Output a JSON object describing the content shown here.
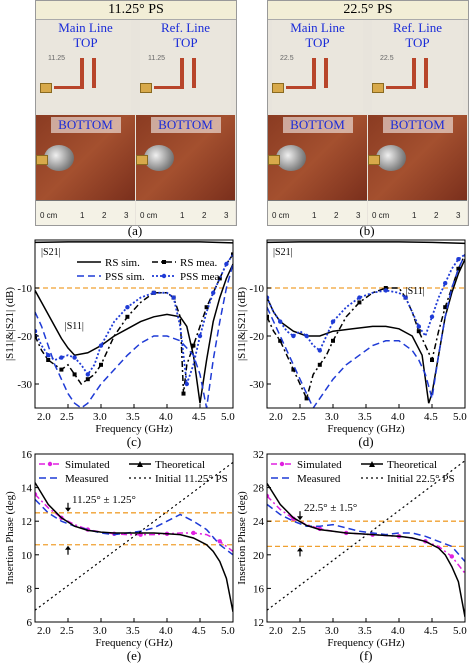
{
  "photos": {
    "left": {
      "title": "11.25° PS",
      "main": "Main Line",
      "ref": "Ref. Line",
      "top": "TOP",
      "bottom": "BOTTOM",
      "caption": "(a)",
      "ruler": [
        "0 cm",
        "1",
        "2",
        "3"
      ],
      "stamp1": "11.25",
      "stamp2": "11.25"
    },
    "right": {
      "title": "22.5° PS",
      "main": "Main Line",
      "ref": "Ref. Line",
      "top": "TOP",
      "bottom": "BOTTOM",
      "caption": "(b)",
      "ruler": [
        "0 cm",
        "1",
        "2",
        "3"
      ],
      "stamp1": "22.5",
      "stamp2": "22.5"
    }
  },
  "colors": {
    "black": "#000000",
    "blue": "#1f3bd6",
    "magenta": "#e020e0",
    "orange": "#f0a030"
  },
  "chart_data": [
    {
      "type": "line",
      "caption": "(c)",
      "xlabel": "Frequency (GHz)",
      "ylabel": "|S11|&|S21| (dB)",
      "xlim": [
        2.0,
        5.0
      ],
      "ylim": [
        -35,
        0
      ],
      "xticks": [
        "2.0",
        "2.5",
        "3.0",
        "3.5",
        "4.0",
        "4.5",
        "5.0"
      ],
      "yticks": [
        "-10",
        "-20",
        "-30"
      ],
      "ref_line": -10,
      "annotations": {
        "s21": "|S21|",
        "s11": "|S11|"
      },
      "legend": [
        "RS sim.",
        "RS mea.",
        "PSS sim.",
        "PSS mea."
      ],
      "series": [
        {
          "name": "RS sim.",
          "style": "solid-black",
          "x": [
            2.0,
            2.1,
            2.2,
            2.3,
            2.4,
            2.5,
            2.6,
            2.8,
            3.0,
            3.2,
            3.4,
            3.6,
            3.8,
            4.0,
            4.2,
            4.3,
            4.4,
            4.5,
            4.6,
            4.7,
            4.8,
            4.9,
            5.0
          ],
          "y": [
            -10.5,
            -13,
            -15.5,
            -18,
            -20.5,
            -22.5,
            -24,
            -23.5,
            -22,
            -20,
            -18.5,
            -17,
            -16,
            -15.5,
            -16,
            -18,
            -24,
            -34,
            -25,
            -17,
            -12,
            -8,
            -5
          ]
        },
        {
          "name": "RS mea.",
          "style": "dashdot-black",
          "x": [
            2.0,
            2.1,
            2.2,
            2.3,
            2.4,
            2.5,
            2.6,
            2.7,
            2.8,
            2.9,
            3.0,
            3.2,
            3.4,
            3.6,
            3.8,
            4.0,
            4.1,
            4.2,
            4.25,
            4.3,
            4.4,
            4.5,
            4.6,
            4.7,
            4.8,
            4.9,
            5.0
          ],
          "y": [
            -20,
            -23,
            -25,
            -26,
            -27,
            -26,
            -28,
            -30,
            -29,
            -28,
            -26,
            -20,
            -16,
            -13,
            -11,
            -11,
            -12,
            -16,
            -32,
            -26,
            -22,
            -18,
            -14,
            -11,
            -8,
            -5,
            -3
          ]
        },
        {
          "name": "PSS sim.",
          "style": "dashed-blue",
          "x": [
            2.0,
            2.1,
            2.2,
            2.3,
            2.4,
            2.5,
            2.6,
            2.7,
            2.8,
            2.9,
            3.0,
            3.2,
            3.4,
            3.6,
            3.8,
            4.0,
            4.2,
            4.4,
            4.5,
            4.6,
            4.7,
            4.8,
            4.9,
            5.0
          ],
          "y": [
            -15,
            -18,
            -22,
            -26,
            -29,
            -32,
            -34,
            -35,
            -34,
            -32,
            -30,
            -27,
            -24,
            -21.5,
            -20,
            -20,
            -21,
            -24,
            -28,
            -35,
            -25,
            -17,
            -10,
            -5
          ]
        },
        {
          "name": "PSS mea.",
          "style": "dotted-blue",
          "x": [
            2.0,
            2.1,
            2.2,
            2.3,
            2.4,
            2.5,
            2.6,
            2.7,
            2.8,
            2.9,
            3.0,
            3.2,
            3.4,
            3.6,
            3.8,
            4.0,
            4.1,
            4.2,
            4.3,
            4.4,
            4.5,
            4.6,
            4.7,
            4.8,
            4.9,
            5.0
          ],
          "y": [
            -19,
            -22,
            -24,
            -25,
            -24.5,
            -24,
            -24.5,
            -26,
            -28,
            -26,
            -22,
            -17,
            -14,
            -12,
            -11,
            -11,
            -12,
            -18,
            -30,
            -26,
            -20,
            -15,
            -11,
            -8,
            -5,
            -3
          ]
        },
        {
          "name": "S21",
          "style": "solid-black",
          "x": [
            2.0,
            2.5,
            3.0,
            3.5,
            4.0,
            4.5,
            5.0
          ],
          "y": [
            -0.5,
            -0.4,
            -0.4,
            -0.4,
            -0.4,
            -0.4,
            -0.6
          ]
        }
      ]
    },
    {
      "type": "line",
      "caption": "(d)",
      "xlabel": "Frequency (GHz)",
      "ylabel": "|S11|&|S21| (dB)",
      "xlim": [
        2.0,
        5.0
      ],
      "ylim": [
        -35,
        0
      ],
      "xticks": [
        "2.0",
        "2.5",
        "3.0",
        "3.5",
        "4.0",
        "4.5",
        "5.0"
      ],
      "yticks": [
        "-10",
        "-20",
        "-30"
      ],
      "ref_line": -10,
      "annotations": {
        "s21": "|S21|",
        "s11": "|S11|"
      },
      "series": [
        {
          "name": "RS sim.",
          "style": "solid-black",
          "x": [
            2.0,
            2.1,
            2.2,
            2.4,
            2.6,
            2.8,
            3.0,
            3.3,
            3.6,
            3.8,
            4.0,
            4.2,
            4.35,
            4.45,
            4.5,
            4.6,
            4.7,
            4.8,
            4.9,
            5.0
          ],
          "y": [
            -12,
            -15,
            -17,
            -19,
            -20,
            -20,
            -19,
            -18.5,
            -18,
            -18,
            -18.5,
            -20,
            -24,
            -34,
            -32,
            -24,
            -16,
            -11,
            -7,
            -4
          ]
        },
        {
          "name": "RS mea.",
          "style": "dashdot-black",
          "x": [
            2.0,
            2.1,
            2.2,
            2.3,
            2.4,
            2.5,
            2.6,
            2.7,
            2.8,
            2.9,
            3.0,
            3.2,
            3.4,
            3.6,
            3.8,
            4.0,
            4.1,
            4.2,
            4.3,
            4.4,
            4.5,
            4.6,
            4.7,
            4.8,
            4.9,
            5.0
          ],
          "y": [
            -16,
            -19,
            -21,
            -24,
            -27,
            -30,
            -33,
            -28,
            -26,
            -24,
            -21,
            -16,
            -13,
            -11,
            -10,
            -10,
            -12,
            -15,
            -19,
            -22,
            -25,
            -19,
            -14,
            -10,
            -6,
            -3
          ]
        },
        {
          "name": "PSS sim.",
          "style": "dashed-blue",
          "x": [
            2.0,
            2.1,
            2.2,
            2.3,
            2.4,
            2.5,
            2.6,
            2.7,
            2.8,
            2.9,
            3.0,
            3.2,
            3.4,
            3.6,
            3.8,
            4.0,
            4.2,
            4.3,
            4.4,
            4.5,
            4.6,
            4.7,
            4.8,
            4.9,
            5.0
          ],
          "y": [
            -14,
            -17,
            -20,
            -23,
            -26,
            -29,
            -32,
            -35,
            -33,
            -31,
            -29,
            -26,
            -24,
            -22,
            -21,
            -21,
            -23,
            -25,
            -28,
            -33,
            -24,
            -16,
            -10,
            -6,
            -3
          ]
        },
        {
          "name": "PSS mea.",
          "style": "dotted-blue",
          "x": [
            2.0,
            2.1,
            2.2,
            2.3,
            2.4,
            2.5,
            2.6,
            2.7,
            2.8,
            2.9,
            3.0,
            3.2,
            3.4,
            3.6,
            3.8,
            4.0,
            4.1,
            4.2,
            4.3,
            4.4,
            4.5,
            4.6,
            4.7,
            4.8,
            4.9,
            5.0
          ],
          "y": [
            -12,
            -15,
            -17,
            -19,
            -20,
            -19,
            -20,
            -22,
            -23,
            -20,
            -17,
            -14,
            -12,
            -11,
            -10.5,
            -11,
            -12,
            -15,
            -18,
            -20,
            -16,
            -12,
            -9,
            -6,
            -4,
            -3
          ]
        },
        {
          "name": "S21",
          "style": "solid-black",
          "x": [
            2.0,
            2.5,
            3.0,
            3.5,
            4.0,
            4.5,
            5.0
          ],
          "y": [
            -0.5,
            -0.4,
            -0.4,
            -0.4,
            -0.4,
            -0.5,
            -0.7
          ]
        }
      ]
    },
    {
      "type": "line",
      "caption": "(e)",
      "xlabel": "Frequency (GHz)",
      "ylabel": "Insertion Phase (deg)",
      "xlim": [
        2.0,
        5.0
      ],
      "ylim": [
        6,
        16
      ],
      "xticks": [
        "2.0",
        "2.5",
        "3.0",
        "3.5",
        "4.0",
        "4.5",
        "5.0"
      ],
      "yticks": [
        "6",
        "8",
        "10",
        "12",
        "14",
        "16"
      ],
      "ref_lines": [
        12.5,
        10.6
      ],
      "legend": [
        "Simulated",
        "Theoretical",
        "Measured",
        "Initial 11.25° PS"
      ],
      "annotation": "11.25° ± 1.25°",
      "series": [
        {
          "name": "Simulated",
          "style": "dashdot-magenta",
          "x": [
            2.0,
            2.2,
            2.4,
            2.6,
            2.8,
            3.0,
            3.2,
            3.4,
            3.6,
            3.8,
            4.0,
            4.2,
            4.4,
            4.6,
            4.8,
            5.0
          ],
          "y": [
            13.6,
            12.8,
            12.2,
            11.8,
            11.5,
            11.35,
            11.25,
            11.2,
            11.2,
            11.2,
            11.25,
            11.3,
            11.3,
            11.2,
            10.8,
            10.2
          ]
        },
        {
          "name": "Measured",
          "style": "dashed-blue",
          "x": [
            2.0,
            2.2,
            2.4,
            2.6,
            2.8,
            3.0,
            3.2,
            3.4,
            3.6,
            3.8,
            4.0,
            4.2,
            4.4,
            4.6,
            4.8,
            5.0
          ],
          "y": [
            13.3,
            12.5,
            12.0,
            11.7,
            11.5,
            11.3,
            11.2,
            11.3,
            11.4,
            11.6,
            12.0,
            12.4,
            12.0,
            11.5,
            10.6,
            10.0
          ]
        },
        {
          "name": "Theoretical",
          "style": "solid-black",
          "x": [
            2.0,
            2.2,
            2.4,
            2.6,
            2.8,
            3.0,
            3.2,
            3.4,
            3.6,
            3.8,
            4.0,
            4.2,
            4.4,
            4.6,
            4.7,
            4.8,
            4.9,
            5.0
          ],
          "y": [
            14.3,
            13.0,
            12.2,
            11.7,
            11.45,
            11.35,
            11.3,
            11.3,
            11.3,
            11.3,
            11.25,
            11.2,
            11.0,
            10.6,
            10.2,
            9.6,
            8.6,
            6.6
          ]
        },
        {
          "name": "Initial 11.25° PS",
          "style": "dotted-black",
          "x": [
            2.0,
            5.0
          ],
          "y": [
            6.7,
            15.5
          ]
        }
      ]
    },
    {
      "type": "line",
      "caption": "(f)",
      "xlabel": "Frequency (GHz)",
      "ylabel": "Insertion Phase (deg)",
      "xlim": [
        2.0,
        5.0
      ],
      "ylim": [
        12,
        32
      ],
      "xticks": [
        "2.0",
        "2.5",
        "3.0",
        "3.5",
        "4.0",
        "4.5",
        "5.0"
      ],
      "yticks": [
        "12",
        "16",
        "20",
        "24",
        "28",
        "32"
      ],
      "ref_lines": [
        24.0,
        21.0
      ],
      "legend": [
        "Simulated",
        "Theoretical",
        "Measured",
        "Initial 22.5° PS"
      ],
      "annotation": "22.5° ± 1.5°",
      "series": [
        {
          "name": "Simulated",
          "style": "dashdot-magenta",
          "x": [
            2.0,
            2.2,
            2.4,
            2.6,
            2.8,
            3.0,
            3.2,
            3.4,
            3.6,
            3.8,
            4.0,
            4.2,
            4.4,
            4.6,
            4.8,
            5.0
          ],
          "y": [
            27.0,
            25.4,
            24.3,
            23.6,
            23.1,
            22.8,
            22.6,
            22.5,
            22.4,
            22.3,
            22.2,
            22.0,
            21.6,
            21.0,
            19.8,
            17.8
          ]
        },
        {
          "name": "Measured",
          "style": "dashed-blue",
          "x": [
            2.0,
            2.2,
            2.4,
            2.6,
            2.8,
            3.0,
            3.2,
            3.4,
            3.6,
            3.8,
            4.0,
            4.2,
            4.4,
            4.6,
            4.8,
            5.0
          ],
          "y": [
            26.0,
            24.8,
            24.0,
            23.4,
            23.4,
            23.6,
            23.2,
            22.8,
            22.6,
            22.4,
            22.6,
            22.6,
            22.2,
            21.6,
            21.0,
            19.2
          ]
        },
        {
          "name": "Theoretical",
          "style": "solid-black",
          "x": [
            2.0,
            2.2,
            2.4,
            2.6,
            2.8,
            3.0,
            3.2,
            3.4,
            3.6,
            3.8,
            4.0,
            4.2,
            4.4,
            4.6,
            4.7,
            4.8,
            4.9,
            5.0
          ],
          "y": [
            28.5,
            26.0,
            24.4,
            23.5,
            23.0,
            22.8,
            22.6,
            22.5,
            22.4,
            22.3,
            22.2,
            22.0,
            21.6,
            20.8,
            20.0,
            18.6,
            16.8,
            12.6
          ]
        },
        {
          "name": "Initial 22.5° PS",
          "style": "dotted-black",
          "x": [
            2.0,
            5.0
          ],
          "y": [
            13.4,
            31.2
          ]
        }
      ]
    }
  ]
}
